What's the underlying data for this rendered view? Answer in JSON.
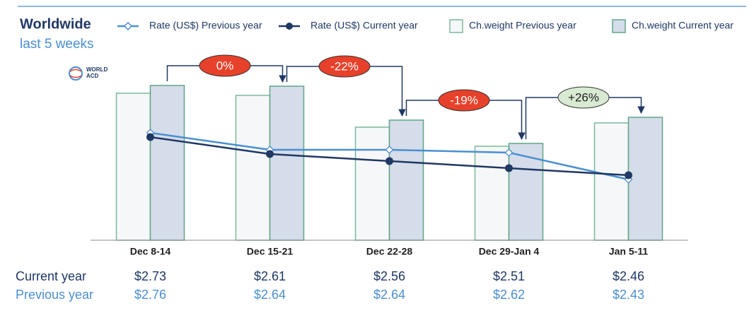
{
  "chart_data": {
    "type": "bar",
    "title": "Worldwide",
    "subtitle": "last 5 weeks",
    "logo_lines": [
      "WORLD",
      "ACD"
    ],
    "categories": [
      "Dec 8-14",
      "Dec 15-21",
      "Dec 22-28",
      "Dec 29-Jan 4",
      "Jan 5-11"
    ],
    "ylim": [
      0,
      240
    ],
    "y2lim": [
      2.0,
      3.2
    ],
    "series": [
      {
        "name": "Rate (US$) Previous year",
        "type": "line",
        "axis": "y2",
        "color": "#4a8fd0",
        "marker": "diamond",
        "values": [
          2.76,
          2.64,
          2.64,
          2.62,
          2.43
        ],
        "value_labels": [
          "$2.76",
          "$2.64",
          "$2.64",
          "$2.62",
          "$2.43"
        ]
      },
      {
        "name": "Rate (US$) Current year",
        "type": "line",
        "axis": "y2",
        "color": "#1f3864",
        "marker": "circle",
        "values": [
          2.73,
          2.61,
          2.56,
          2.51,
          2.46
        ],
        "value_labels": [
          "$2.73",
          "$2.61",
          "$2.56",
          "$2.51",
          "$2.46"
        ]
      },
      {
        "name": "Ch.weight Previous year",
        "type": "bar",
        "color": "#f6f7f9",
        "edge_color": "#7ab89a",
        "values": [
          208,
          205,
          160,
          133,
          166
        ]
      },
      {
        "name": "Ch.weight Current year",
        "type": "bar",
        "color": "#d5dcea",
        "edge_color": "#5fa684",
        "values": [
          219,
          218,
          170,
          137,
          174
        ]
      }
    ],
    "table_rows": [
      {
        "label": "Current year",
        "series_index": 1,
        "color": "#1f3864"
      },
      {
        "label": "Previous year",
        "series_index": 0,
        "color": "#4a8fd0"
      }
    ],
    "changes": [
      {
        "label": "0%",
        "color": "#e8412b"
      },
      {
        "label": "-22%",
        "color": "#e8412b"
      },
      {
        "label": "-19%",
        "color": "#e8412b"
      },
      {
        "label": "+26%",
        "color": "#d8ead2"
      }
    ]
  }
}
